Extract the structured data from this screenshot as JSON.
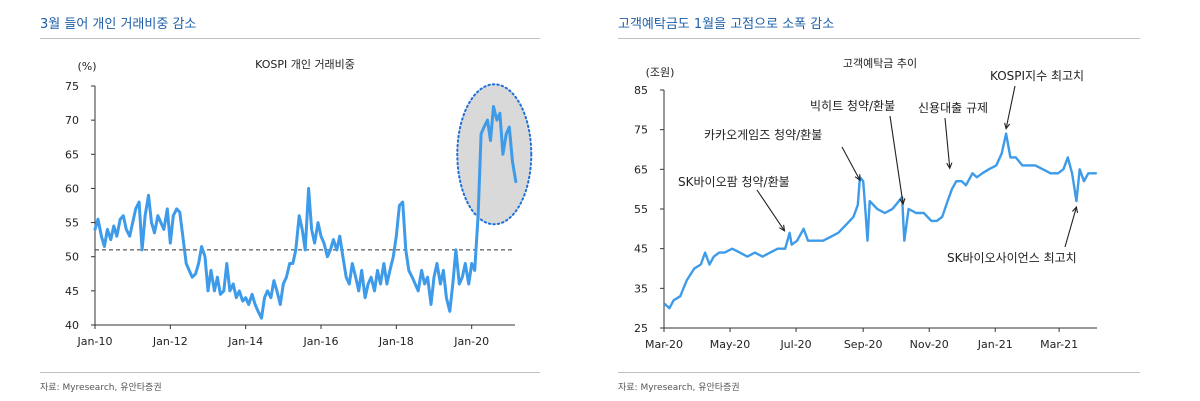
{
  "left": {
    "title": "3월 들어 개인 거래비중 감소",
    "source": "자료: Myresearch, 유안타증권",
    "chart_data": {
      "type": "line",
      "title": "KOSPI 개인 거래비중",
      "ylabel": "(%)",
      "ylim": [
        40,
        75
      ],
      "yticks": [
        40,
        45,
        50,
        55,
        60,
        65,
        70,
        75
      ],
      "xlim": [
        2010.0,
        2021.15
      ],
      "xticks": [
        {
          "x": 2010,
          "label": "Jan-10"
        },
        {
          "x": 2012,
          "label": "Jan-12"
        },
        {
          "x": 2014,
          "label": "Jan-14"
        },
        {
          "x": 2016,
          "label": "Jan-16"
        },
        {
          "x": 2018,
          "label": "Jan-18"
        },
        {
          "x": 2020,
          "label": "Jan-20"
        }
      ],
      "reference_line": 51,
      "highlight": {
        "x": 2020.6,
        "y": 65,
        "note": "circled recent surge"
      },
      "series": [
        {
          "color": "#3d9be9",
          "points": [
            [
              2010.0,
              54
            ],
            [
              2010.08,
              55.5
            ],
            [
              2010.17,
              53
            ],
            [
              2010.25,
              51.5
            ],
            [
              2010.33,
              54
            ],
            [
              2010.42,
              52.5
            ],
            [
              2010.5,
              54.5
            ],
            [
              2010.58,
              53
            ],
            [
              2010.67,
              55.5
            ],
            [
              2010.75,
              56
            ],
            [
              2010.83,
              54
            ],
            [
              2010.92,
              53
            ],
            [
              2011.0,
              55
            ],
            [
              2011.08,
              57
            ],
            [
              2011.17,
              58
            ],
            [
              2011.25,
              51
            ],
            [
              2011.33,
              56
            ],
            [
              2011.42,
              59
            ],
            [
              2011.5,
              55
            ],
            [
              2011.58,
              53.5
            ],
            [
              2011.67,
              56
            ],
            [
              2011.75,
              55
            ],
            [
              2011.83,
              54
            ],
            [
              2011.92,
              57
            ],
            [
              2012.0,
              52
            ],
            [
              2012.08,
              56
            ],
            [
              2012.17,
              57
            ],
            [
              2012.25,
              56.5
            ],
            [
              2012.33,
              53
            ],
            [
              2012.42,
              49
            ],
            [
              2012.5,
              48
            ],
            [
              2012.58,
              47
            ],
            [
              2012.67,
              47.5
            ],
            [
              2012.75,
              49
            ],
            [
              2012.83,
              51.5
            ],
            [
              2012.92,
              50
            ],
            [
              2013.0,
              45
            ],
            [
              2013.08,
              48
            ],
            [
              2013.17,
              45
            ],
            [
              2013.25,
              47
            ],
            [
              2013.33,
              44.5
            ],
            [
              2013.42,
              45
            ],
            [
              2013.5,
              49
            ],
            [
              2013.58,
              45
            ],
            [
              2013.67,
              46
            ],
            [
              2013.75,
              44
            ],
            [
              2013.83,
              45
            ],
            [
              2013.92,
              43.5
            ],
            [
              2014.0,
              44
            ],
            [
              2014.08,
              43
            ],
            [
              2014.17,
              44.5
            ],
            [
              2014.25,
              43
            ],
            [
              2014.33,
              42
            ],
            [
              2014.42,
              41
            ],
            [
              2014.5,
              44
            ],
            [
              2014.58,
              45
            ],
            [
              2014.67,
              44
            ],
            [
              2014.75,
              46.5
            ],
            [
              2014.83,
              45
            ],
            [
              2014.92,
              43
            ],
            [
              2015.0,
              46
            ],
            [
              2015.08,
              47
            ],
            [
              2015.17,
              49
            ],
            [
              2015.25,
              49
            ],
            [
              2015.33,
              51
            ],
            [
              2015.42,
              56
            ],
            [
              2015.5,
              54
            ],
            [
              2015.58,
              51
            ],
            [
              2015.67,
              60
            ],
            [
              2015.75,
              54
            ],
            [
              2015.83,
              52
            ],
            [
              2015.92,
              55
            ],
            [
              2016.0,
              53
            ],
            [
              2016.08,
              52
            ],
            [
              2016.17,
              50
            ],
            [
              2016.25,
              51
            ],
            [
              2016.33,
              52.5
            ],
            [
              2016.42,
              51
            ],
            [
              2016.5,
              53
            ],
            [
              2016.58,
              50
            ],
            [
              2016.67,
              47
            ],
            [
              2016.75,
              46
            ],
            [
              2016.83,
              49
            ],
            [
              2016.92,
              47
            ],
            [
              2017.0,
              45
            ],
            [
              2017.08,
              48
            ],
            [
              2017.17,
              44
            ],
            [
              2017.25,
              46
            ],
            [
              2017.33,
              47
            ],
            [
              2017.42,
              45
            ],
            [
              2017.5,
              48
            ],
            [
              2017.58,
              46
            ],
            [
              2017.67,
              49
            ],
            [
              2017.75,
              46
            ],
            [
              2017.83,
              48
            ],
            [
              2017.92,
              50
            ],
            [
              2018.0,
              53
            ],
            [
              2018.08,
              57.5
            ],
            [
              2018.17,
              58
            ],
            [
              2018.25,
              51
            ],
            [
              2018.33,
              48
            ],
            [
              2018.42,
              47
            ],
            [
              2018.5,
              46
            ],
            [
              2018.58,
              45
            ],
            [
              2018.67,
              48
            ],
            [
              2018.75,
              46
            ],
            [
              2018.83,
              47
            ],
            [
              2018.92,
              43
            ],
            [
              2019.0,
              47
            ],
            [
              2019.08,
              49
            ],
            [
              2019.17,
              46
            ],
            [
              2019.25,
              48
            ],
            [
              2019.33,
              44
            ],
            [
              2019.42,
              42
            ],
            [
              2019.5,
              46
            ],
            [
              2019.58,
              51
            ],
            [
              2019.67,
              46
            ],
            [
              2019.75,
              47
            ],
            [
              2019.83,
              49
            ],
            [
              2019.92,
              46
            ],
            [
              2020.0,
              49
            ],
            [
              2020.08,
              48
            ],
            [
              2020.17,
              56
            ],
            [
              2020.25,
              68
            ],
            [
              2020.33,
              69
            ],
            [
              2020.42,
              70
            ],
            [
              2020.5,
              67
            ],
            [
              2020.58,
              72
            ],
            [
              2020.67,
              70
            ],
            [
              2020.75,
              71
            ],
            [
              2020.83,
              65
            ],
            [
              2020.92,
              68
            ],
            [
              2021.0,
              69
            ],
            [
              2021.08,
              64
            ],
            [
              2021.17,
              61
            ]
          ]
        }
      ]
    }
  },
  "right": {
    "title": "고객예탁금도 1월을 고점으로 소폭 감소",
    "source": "자료: Myresearch, 유안타증권",
    "chart_data": {
      "type": "line",
      "title": "고객예탁금 추이",
      "ylabel": "(조원)",
      "ylim": [
        25,
        85
      ],
      "yticks": [
        25,
        35,
        45,
        55,
        65,
        75,
        85
      ],
      "xlim": [
        "2020-03-01",
        "2021-04-05"
      ],
      "xticks": [
        {
          "date": "2020-03-01",
          "label": "Mar-20"
        },
        {
          "date": "2020-05-01",
          "label": "May-20"
        },
        {
          "date": "2020-07-01",
          "label": "Jul-20"
        },
        {
          "date": "2020-09-01",
          "label": "Sep-20"
        },
        {
          "date": "2020-11-01",
          "label": "Nov-20"
        },
        {
          "date": "2021-01-01",
          "label": "Jan-21"
        },
        {
          "date": "2021-03-01",
          "label": "Mar-21"
        }
      ],
      "annotations": [
        {
          "text": "SK바이오팜 청약/환불",
          "date": "2020-06-24",
          "y": 48,
          "label_side": "above"
        },
        {
          "text": "카카오게임즈 청약/환불",
          "date": "2020-08-29",
          "y": 61,
          "label_side": "above"
        },
        {
          "text": "빅히트 청약/환불",
          "date": "2020-10-06",
          "y": 55,
          "label_side": "above"
        },
        {
          "text": "신용대출 규제",
          "date": "2020-11-20",
          "y": 64,
          "label_side": "above"
        },
        {
          "text": "KOSPI지수 최고치",
          "date": "2021-01-11",
          "y": 74,
          "label_side": "above"
        },
        {
          "text": "SK바이오사이언스 최고치",
          "date": "2021-03-17",
          "y": 57,
          "label_side": "below"
        }
      ],
      "series": [
        {
          "color": "#3d9be9",
          "points": [
            [
              "2020-03-02",
              31
            ],
            [
              "2020-03-06",
              30
            ],
            [
              "2020-03-10",
              32
            ],
            [
              "2020-03-16",
              33
            ],
            [
              "2020-03-22",
              37
            ],
            [
              "2020-03-29",
              40
            ],
            [
              "2020-04-04",
              41
            ],
            [
              "2020-04-08",
              44
            ],
            [
              "2020-04-12",
              41
            ],
            [
              "2020-04-16",
              43
            ],
            [
              "2020-04-21",
              44
            ],
            [
              "2020-04-26",
              44
            ],
            [
              "2020-05-03",
              45
            ],
            [
              "2020-05-10",
              44
            ],
            [
              "2020-05-17",
              43
            ],
            [
              "2020-05-24",
              44
            ],
            [
              "2020-05-31",
              43
            ],
            [
              "2020-06-07",
              44
            ],
            [
              "2020-06-14",
              45
            ],
            [
              "2020-06-21",
              45
            ],
            [
              "2020-06-25",
              49
            ],
            [
              "2020-06-27",
              46
            ],
            [
              "2020-07-02",
              47
            ],
            [
              "2020-07-08",
              50
            ],
            [
              "2020-07-12",
              47
            ],
            [
              "2020-07-19",
              47
            ],
            [
              "2020-07-26",
              47
            ],
            [
              "2020-08-02",
              48
            ],
            [
              "2020-08-09",
              49
            ],
            [
              "2020-08-16",
              51
            ],
            [
              "2020-08-23",
              53
            ],
            [
              "2020-08-27",
              56
            ],
            [
              "2020-08-29",
              63
            ],
            [
              "2020-09-01",
              62
            ],
            [
              "2020-09-03",
              55
            ],
            [
              "2020-09-05",
              47
            ],
            [
              "2020-09-07",
              57
            ],
            [
              "2020-09-14",
              55
            ],
            [
              "2020-09-21",
              54
            ],
            [
              "2020-09-28",
              55
            ],
            [
              "2020-10-04",
              57
            ],
            [
              "2020-10-07",
              58
            ],
            [
              "2020-10-09",
              47
            ],
            [
              "2020-10-13",
              55
            ],
            [
              "2020-10-20",
              54
            ],
            [
              "2020-10-27",
              54
            ],
            [
              "2020-11-03",
              52
            ],
            [
              "2020-11-08",
              52
            ],
            [
              "2020-11-13",
              53
            ],
            [
              "2020-11-18",
              57
            ],
            [
              "2020-11-22",
              60
            ],
            [
              "2020-11-26",
              62
            ],
            [
              "2020-12-01",
              62
            ],
            [
              "2020-12-05",
              61
            ],
            [
              "2020-12-11",
              64
            ],
            [
              "2020-12-15",
              63
            ],
            [
              "2020-12-20",
              64
            ],
            [
              "2020-12-26",
              65
            ],
            [
              "2021-01-02",
              66
            ],
            [
              "2021-01-07",
              69
            ],
            [
              "2021-01-11",
              74
            ],
            [
              "2021-01-15",
              68
            ],
            [
              "2021-01-20",
              68
            ],
            [
              "2021-01-26",
              66
            ],
            [
              "2021-02-01",
              66
            ],
            [
              "2021-02-07",
              66
            ],
            [
              "2021-02-14",
              65
            ],
            [
              "2021-02-21",
              64
            ],
            [
              "2021-02-28",
              64
            ],
            [
              "2021-03-05",
              65
            ],
            [
              "2021-03-09",
              68
            ],
            [
              "2021-03-13",
              64
            ],
            [
              "2021-03-17",
              57
            ],
            [
              "2021-03-20",
              65
            ],
            [
              "2021-03-24",
              62
            ],
            [
              "2021-03-28",
              64
            ],
            [
              "2021-04-04",
              64
            ]
          ]
        }
      ]
    }
  }
}
